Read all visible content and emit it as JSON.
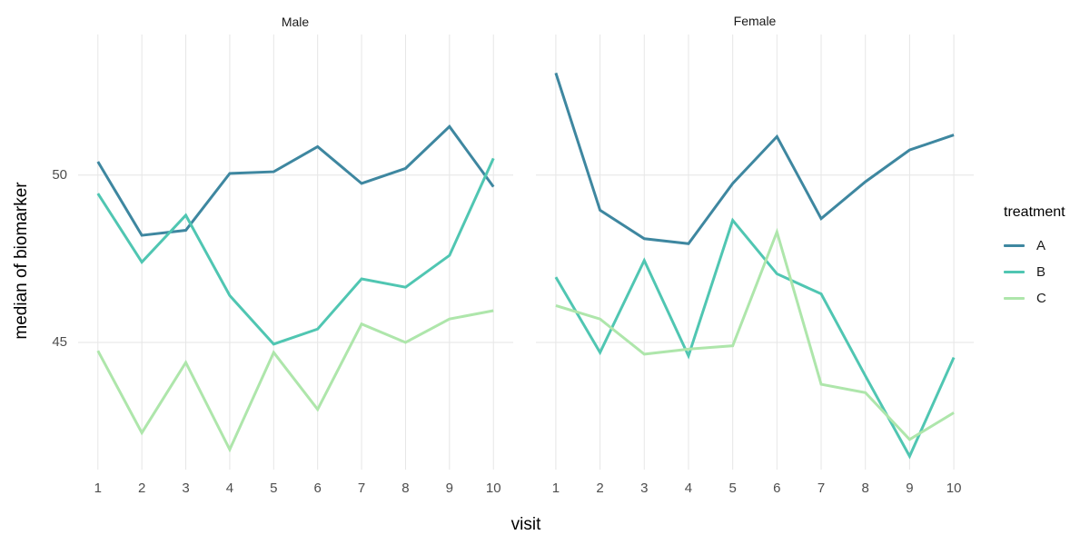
{
  "chart_data": {
    "type": "line",
    "title": "",
    "xlabel": "visit",
    "ylabel": "median of biomarker",
    "legend": {
      "title": "treatment",
      "position": "right",
      "entries": [
        "A",
        "B",
        "C"
      ]
    },
    "x": [
      1,
      2,
      3,
      4,
      5,
      6,
      7,
      8,
      9,
      10
    ],
    "x_tick_labels": [
      "1",
      "2",
      "3",
      "4",
      "5",
      "6",
      "7",
      "8",
      "9",
      "10"
    ],
    "y_ticks": [
      45,
      50
    ],
    "y_tick_labels": [
      "45",
      "50"
    ],
    "xlim": [
      0.55,
      10.45
    ],
    "ylim": [
      41.2,
      54.2
    ],
    "grid": "major-only",
    "grid_color": "#e6e6e6",
    "background": "#ffffff",
    "line_width": 3,
    "colors": {
      "A": "#3e87a0",
      "B": "#50c6b2",
      "C": "#aee6ab"
    },
    "facets": [
      {
        "label": "Male",
        "series": [
          {
            "name": "A",
            "values": [
              50.4,
              48.2,
              48.35,
              50.05,
              50.1,
              50.85,
              49.75,
              50.2,
              51.45,
              49.65
            ]
          },
          {
            "name": "B",
            "values": [
              49.45,
              47.4,
              48.8,
              46.4,
              44.95,
              45.4,
              46.9,
              46.65,
              47.6,
              50.5
            ]
          },
          {
            "name": "C",
            "values": [
              44.75,
              42.3,
              44.4,
              41.8,
              44.7,
              43.0,
              45.55,
              45.0,
              45.7,
              45.95
            ]
          }
        ]
      },
      {
        "label": "Female",
        "series": [
          {
            "name": "A",
            "values": [
              53.05,
              48.95,
              48.1,
              47.95,
              49.75,
              51.15,
              48.7,
              49.8,
              50.75,
              51.2
            ]
          },
          {
            "name": "B",
            "values": [
              46.95,
              44.7,
              47.45,
              44.6,
              48.65,
              47.05,
              46.45,
              44.0,
              41.6,
              44.55
            ]
          },
          {
            "name": "C",
            "values": [
              46.1,
              45.7,
              44.65,
              44.8,
              44.9,
              48.3,
              43.75,
              43.5,
              42.1,
              42.9
            ]
          }
        ]
      }
    ]
  }
}
